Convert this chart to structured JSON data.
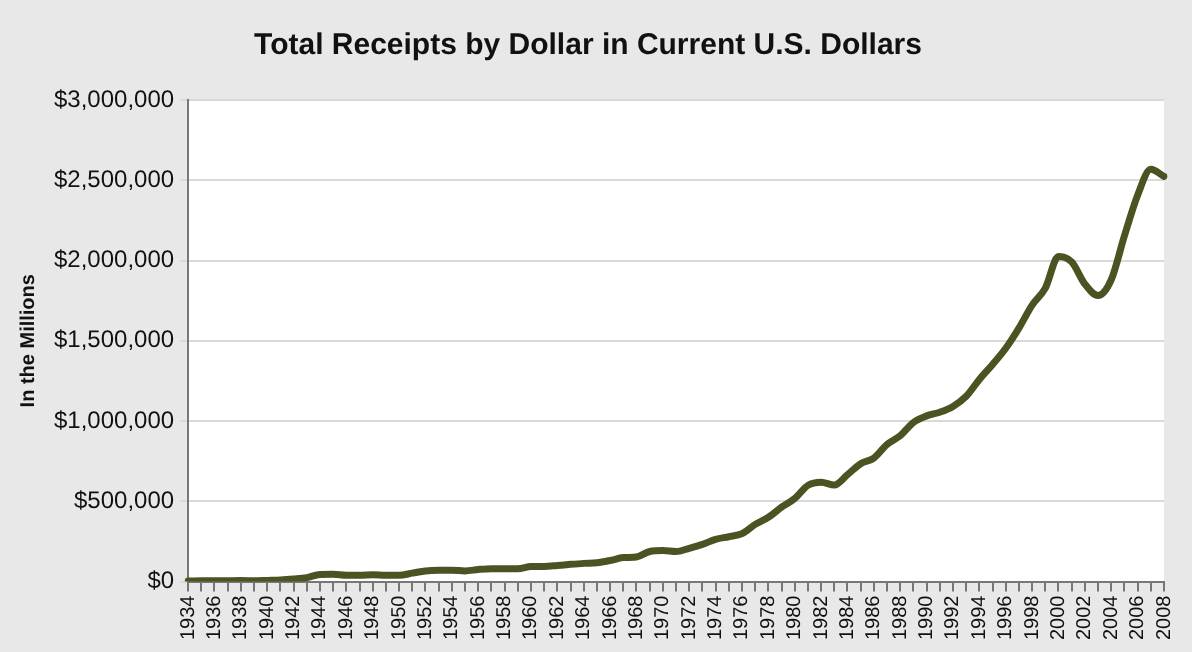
{
  "chart_data": {
    "type": "line",
    "title": "Total Receipts by Dollar in Current U.S. Dollars",
    "ylabel": "In the Millions",
    "categories": [
      "1934",
      null,
      "1936",
      null,
      "1938",
      null,
      "1940",
      null,
      "1942",
      null,
      "1944",
      null,
      "1946",
      null,
      "1948",
      null,
      "1950",
      null,
      "1952",
      null,
      "1954",
      null,
      "1956",
      null,
      "1958",
      null,
      "1960",
      null,
      "1962",
      null,
      "1964",
      null,
      "1966",
      null,
      "1968",
      null,
      "1970",
      null,
      "1972",
      null,
      "1974",
      null,
      "1976",
      null,
      "1978",
      null,
      "1980",
      null,
      "1982",
      null,
      "1984",
      null,
      "1986",
      null,
      "1988",
      null,
      "1990",
      null,
      "1992",
      null,
      "1994",
      null,
      "1996",
      null,
      "1998",
      null,
      "2000",
      null,
      "2002",
      null,
      "2004",
      null,
      "2006",
      null,
      "2008"
    ],
    "series": [
      {
        "color": "#4b5323",
        "values": [
          3000,
          4000,
          4000,
          5000,
          6000,
          5000,
          7000,
          9000,
          15000,
          24000,
          44000,
          45000,
          39000,
          39000,
          42000,
          39000,
          39000,
          52000,
          66000,
          70000,
          70000,
          66000,
          75000,
          80000,
          80000,
          79000,
          93000,
          94000,
          100000,
          107000,
          113000,
          117000,
          131000,
          149000,
          153000,
          187000,
          193000,
          187000,
          207000,
          231000,
          263000,
          279000,
          298000,
          356000,
          400000,
          463000,
          517000,
          599000,
          618000,
          601000,
          666000,
          734000,
          769000,
          854000,
          909000,
          991000,
          1032000,
          1055000,
          1091000,
          1154000,
          1259000,
          1352000,
          1453000,
          1579000,
          1722000,
          1828000,
          2025000,
          1991000,
          1853000,
          1782000,
          1880000,
          2154000,
          2407000,
          2568000,
          2524000
        ]
      }
    ],
    "ylim": [
      0,
      3000000
    ],
    "yticks": [
      {
        "value": 0,
        "label": "$0"
      },
      {
        "value": 500000,
        "label": "$500,000"
      },
      {
        "value": 1000000,
        "label": "$1,000,000"
      },
      {
        "value": 1500000,
        "label": "$1,500,000"
      },
      {
        "value": 2000000,
        "label": "$2,000,000"
      },
      {
        "value": 2500000,
        "label": "$2,500,000"
      },
      {
        "value": 3000000,
        "label": "$3,000,000"
      }
    ],
    "grid": "y",
    "legend": false,
    "marker": "none",
    "line_style": "solid"
  }
}
